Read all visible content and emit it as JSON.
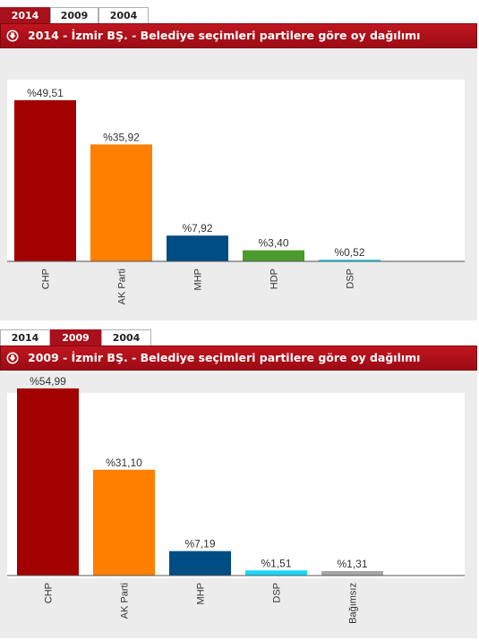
{
  "panels": [
    {
      "tabs": [
        {
          "label": "2014",
          "active": true
        },
        {
          "label": "2009",
          "active": false
        },
        {
          "label": "2004",
          "active": false
        }
      ],
      "header_title": "2014 - İzmir BŞ. - Belediye seçimleri partilere göre oy dağılımı"
    },
    {
      "tabs": [
        {
          "label": "2014",
          "active": false
        },
        {
          "label": "2009",
          "active": true
        },
        {
          "label": "2004",
          "active": false
        }
      ],
      "header_title": "2009 - İzmir BŞ. - Belediye seçimleri partilere göre oy dağılımı"
    }
  ],
  "chart_data": [
    {
      "type": "bar",
      "title": "2014 - İzmir BŞ. - Belediye seçimleri partilere göre oy dağılımı",
      "categories": [
        "CHP",
        "AK Parti",
        "MHP",
        "HDP",
        "DSP"
      ],
      "values": [
        49.51,
        35.92,
        7.92,
        3.4,
        0.52
      ],
      "data_labels": [
        "%49,51",
        "%35,92",
        "%7,92",
        "%3,40",
        "%0,52"
      ],
      "colors": [
        "#a30000",
        "#ff7f00",
        "#004c84",
        "#4a9a2d",
        "#19d6f7"
      ],
      "ylim": [
        0,
        55
      ],
      "grid": false,
      "legend": "none"
    },
    {
      "type": "bar",
      "title": "2009 - İzmir BŞ. - Belediye seçimleri partilere göre oy dağılımı",
      "categories": [
        "CHP",
        "AK Parti",
        "MHP",
        "DSP",
        "Bağımsız"
      ],
      "values": [
        54.99,
        31.1,
        7.19,
        1.51,
        1.31
      ],
      "data_labels": [
        "%54,99",
        "%31,10",
        "%7,19",
        "%1,51",
        "%1,31"
      ],
      "colors": [
        "#a30000",
        "#ff7f00",
        "#004c84",
        "#19d6f7",
        "#a6a6a6"
      ],
      "ylim": [
        0,
        60.5
      ],
      "grid": false,
      "legend": "none"
    }
  ]
}
